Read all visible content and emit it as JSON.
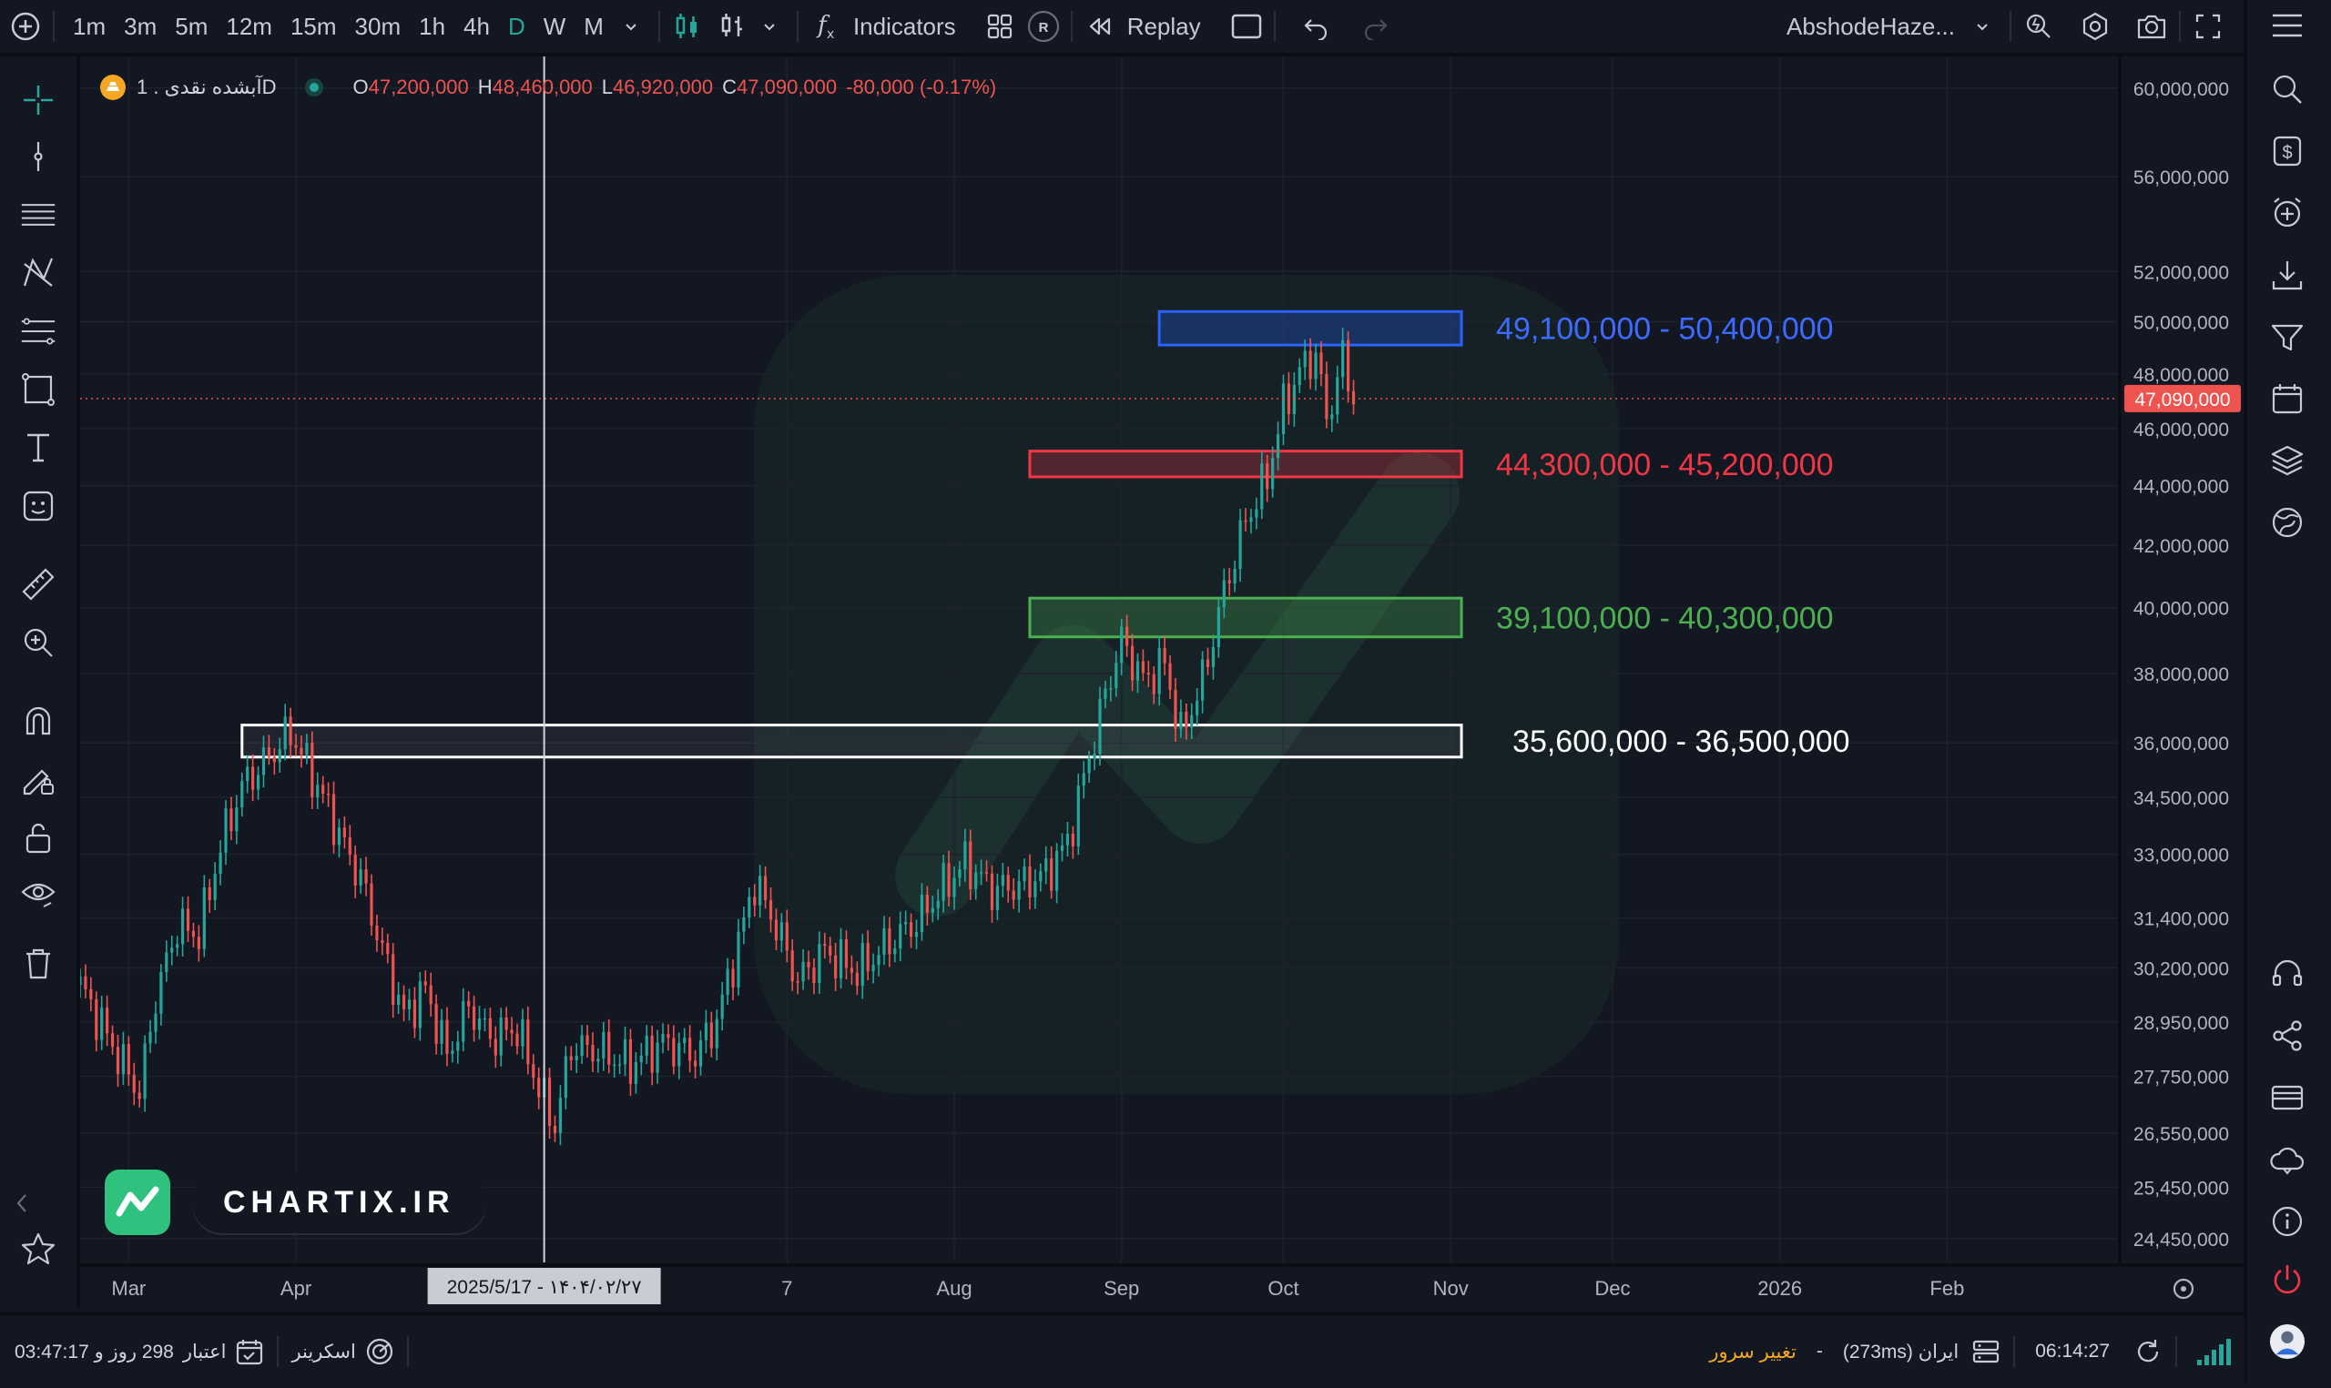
{
  "toolbar": {
    "intervals": [
      "1m",
      "3m",
      "5m",
      "12m",
      "15m",
      "30m",
      "1h",
      "4h",
      "D",
      "W",
      "M"
    ],
    "active_interval": "D",
    "indicators_label": "Indicators",
    "replay_label": "Replay",
    "replay_badge": "R",
    "account_name": "AbshodeHaze..."
  },
  "legend": {
    "symbol": "آبشده نقدی . 1D",
    "open_label": "O",
    "open": "47,200,000",
    "high_label": "H",
    "high": "48,460,000",
    "low_label": "L",
    "low": "46,920,000",
    "close_label": "C",
    "close": "47,090,000",
    "change": "-80,000 (-0.17%)"
  },
  "crosshair_date_label": "2025/5/17 - ۱۴۰۴/۰۲/۲۷",
  "last_price_label": "47,090,000",
  "watermark": {
    "logo_text": "CHARTIX.IR"
  },
  "bottom": {
    "credit_label": "اعتبار",
    "credit_value": "298 روز و 03:47:17",
    "screener_label": "اسکرینر",
    "change_server_label": "تغییر سرور",
    "server_label": "ایران (273ms)",
    "dash": "-",
    "clock": "06:14:27"
  },
  "colors": {
    "background": "#131722",
    "up": "#26a69a",
    "down": "#ef5350",
    "zone_blue": "#2962ff",
    "zone_red": "#f23645",
    "zone_green": "#4caf50",
    "zone_white": "#ffffff"
  },
  "chart_data": {
    "type": "candlestick",
    "symbol": "آبشده نقدی",
    "timeframe": "1D",
    "y_scale": "log",
    "y_ticks": [
      24450000,
      25450000,
      26550000,
      27750000,
      28950000,
      30200000,
      31400000,
      33000000,
      34500000,
      36000000,
      38000000,
      40000000,
      42000000,
      44000000,
      46000000,
      48000000,
      50000000,
      52000000,
      56000000,
      60000000
    ],
    "y_tick_labels": [
      "24,450,000",
      "25,450,000",
      "26,550,000",
      "27,750,000",
      "28,950,000",
      "30,200,000",
      "31,400,000",
      "33,000,000",
      "34,500,000",
      "36,000,000",
      "38,000,000",
      "40,000,000",
      "42,000,000",
      "44,000,000",
      "46,000,000",
      "48,000,000",
      "50,000,000",
      "52,000,000",
      "56,000,000",
      "60,000,000"
    ],
    "x_tick_labels": [
      "Mar",
      "Apr",
      "7",
      "Aug",
      "Sep",
      "Oct",
      "Nov",
      "Dec",
      "2026",
      "Feb"
    ],
    "x_ticks": [
      "2025-03-01",
      "2025-04-01",
      "2025-07-01",
      "2025-08-01",
      "2025-09-01",
      "2025-10-01",
      "2025-11-01",
      "2025-12-01",
      "2026-01-01",
      "2026-02-01"
    ],
    "x_range": [
      "2025-02-20",
      "2026-03-05"
    ],
    "y_range": [
      24000000,
      61500000
    ],
    "anchors": [
      [
        "2025-02-20",
        29800000
      ],
      [
        "2025-02-27",
        28200000
      ],
      [
        "2025-03-03",
        27400000
      ],
      [
        "2025-03-06",
        29500000
      ],
      [
        "2025-03-10",
        31200000
      ],
      [
        "2025-03-14",
        31000000
      ],
      [
        "2025-03-18",
        33200000
      ],
      [
        "2025-03-22",
        34800000
      ],
      [
        "2025-03-27",
        35600000
      ],
      [
        "2025-03-31",
        36300000
      ],
      [
        "2025-04-03",
        35400000
      ],
      [
        "2025-04-07",
        34200000
      ],
      [
        "2025-04-10",
        33200000
      ],
      [
        "2025-04-13",
        32400000
      ],
      [
        "2025-04-17",
        30600000
      ],
      [
        "2025-04-21",
        29100000
      ],
      [
        "2025-04-25",
        29700000
      ],
      [
        "2025-04-29",
        28200000
      ],
      [
        "2025-05-03",
        29300000
      ],
      [
        "2025-05-07",
        28600000
      ],
      [
        "2025-05-12",
        28800000
      ],
      [
        "2025-05-17",
        27200000
      ],
      [
        "2025-05-19",
        26700000
      ],
      [
        "2025-05-22",
        28400000
      ],
      [
        "2025-05-27",
        28300000
      ],
      [
        "2025-06-02",
        28000000
      ],
      [
        "2025-06-08",
        28500000
      ],
      [
        "2025-06-14",
        28200000
      ],
      [
        "2025-06-18",
        29000000
      ],
      [
        "2025-06-22",
        30800000
      ],
      [
        "2025-06-25",
        32300000
      ],
      [
        "2025-06-29",
        31200000
      ],
      [
        "2025-07-03",
        29900000
      ],
      [
        "2025-07-08",
        30600000
      ],
      [
        "2025-07-14",
        30100000
      ],
      [
        "2025-07-20",
        30800000
      ],
      [
        "2025-07-25",
        31300000
      ],
      [
        "2025-07-29",
        32000000
      ],
      [
        "2025-08-03",
        32800000
      ],
      [
        "2025-08-08",
        32100000
      ],
      [
        "2025-08-13",
        32200000
      ],
      [
        "2025-08-18",
        32500000
      ],
      [
        "2025-08-22",
        33300000
      ],
      [
        "2025-08-26",
        35600000
      ],
      [
        "2025-08-29",
        37400000
      ],
      [
        "2025-09-01",
        39000000
      ],
      [
        "2025-09-05",
        37800000
      ],
      [
        "2025-09-09",
        38300000
      ],
      [
        "2025-09-12",
        36200000
      ],
      [
        "2025-09-16",
        37800000
      ],
      [
        "2025-09-20",
        40500000
      ],
      [
        "2025-09-24",
        42800000
      ],
      [
        "2025-09-28",
        44300000
      ],
      [
        "2025-10-01",
        46800000
      ],
      [
        "2025-10-04",
        48100000
      ],
      [
        "2025-10-07",
        48800000
      ],
      [
        "2025-10-09",
        46300000
      ],
      [
        "2025-10-12",
        48600000
      ],
      [
        "2025-10-14",
        47090000
      ]
    ],
    "zones": [
      {
        "label": "49,100,000 - 50,400,000",
        "low": 49100000,
        "high": 50400000,
        "from": "2025-09-08",
        "to": "2025-11-03",
        "color": "#2962ff"
      },
      {
        "label": "44,300,000 - 45,200,000",
        "low": 44300000,
        "high": 45200000,
        "from": "2025-08-15",
        "to": "2025-11-03",
        "color": "#f23645"
      },
      {
        "label": "39,100,000 - 40,300,000",
        "low": 39100000,
        "high": 40300000,
        "from": "2025-08-15",
        "to": "2025-11-03",
        "color": "#4caf50"
      },
      {
        "label": "35,600,000 - 36,500,000",
        "low": 35600000,
        "high": 36500000,
        "from": "2025-03-22",
        "to": "2025-11-03",
        "color": "#ffffff"
      }
    ],
    "last_price": 47090000,
    "crosshair_date": "2025-05-17"
  }
}
